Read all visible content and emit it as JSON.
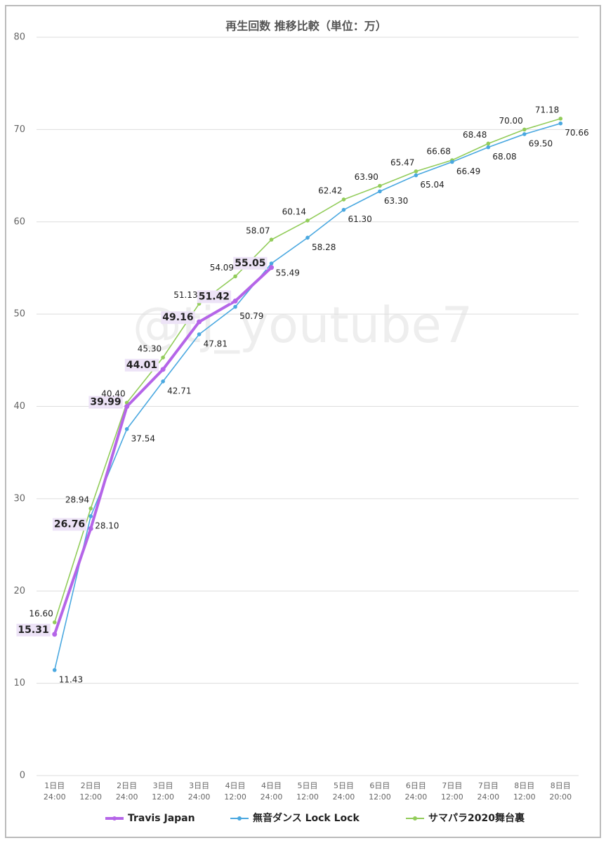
{
  "chart_data": {
    "type": "line",
    "title": "再生回数 推移比較（単位：万）",
    "watermark": "@tj_youtube7",
    "categories": [
      [
        "1日目",
        "24:00"
      ],
      [
        "2日目",
        "12:00"
      ],
      [
        "2日目",
        "24:00"
      ],
      [
        "3日目",
        "12:00"
      ],
      [
        "3日目",
        "24:00"
      ],
      [
        "4日目",
        "12:00"
      ],
      [
        "4日目",
        "24:00"
      ],
      [
        "5日目",
        "12:00"
      ],
      [
        "5日目",
        "24:00"
      ],
      [
        "6日目",
        "12:00"
      ],
      [
        "6日目",
        "24:00"
      ],
      [
        "7日目",
        "12:00"
      ],
      [
        "7日目",
        "24:00"
      ],
      [
        "8日目",
        "12:00"
      ],
      [
        "8日目",
        "20:00"
      ]
    ],
    "series": [
      {
        "name": "Travis Japan",
        "color": "#b565e8",
        "values": [
          15.31,
          26.76,
          39.99,
          44.01,
          49.16,
          51.42,
          55.05,
          null,
          null,
          null,
          null,
          null,
          null,
          null,
          null
        ],
        "value_labels": [
          "15.31",
          "26.76",
          "39.99",
          "44.01",
          "49.16",
          "51.42",
          "55.05",
          null,
          null,
          null,
          null,
          null,
          null,
          null,
          null
        ]
      },
      {
        "name": "無音ダンス Lock Lock",
        "color": "#4aa8e0",
        "values": [
          11.43,
          28.1,
          37.54,
          42.71,
          47.81,
          50.79,
          55.49,
          58.28,
          61.3,
          63.3,
          65.04,
          66.49,
          68.08,
          69.5,
          70.66
        ],
        "value_labels": [
          "11.43",
          "28.10",
          "37.54",
          "42.71",
          "47.81",
          "50.79",
          "55.49",
          "58.28",
          "61.30",
          "63.30",
          "65.04",
          "66.49",
          "68.08",
          "69.50",
          "70.66"
        ]
      },
      {
        "name": "サマパラ2020舞台裏",
        "color": "#92cc5a",
        "values": [
          16.6,
          28.94,
          40.4,
          45.3,
          51.13,
          54.09,
          58.07,
          60.14,
          62.42,
          63.9,
          65.47,
          66.68,
          68.48,
          70.0,
          71.18
        ],
        "value_labels": [
          "16.60",
          "28.94",
          "40.40",
          "45.30",
          "51.13",
          "54.09",
          "58.07",
          "60.14",
          "62.42",
          "63.90",
          "65.47",
          "66.68",
          "68.48",
          "70.00",
          "71.18"
        ]
      }
    ],
    "ylim": [
      0,
      80
    ],
    "yticks": [
      0,
      10,
      20,
      30,
      40,
      50,
      60,
      70,
      80
    ],
    "grid": true,
    "legend": "bottom"
  }
}
